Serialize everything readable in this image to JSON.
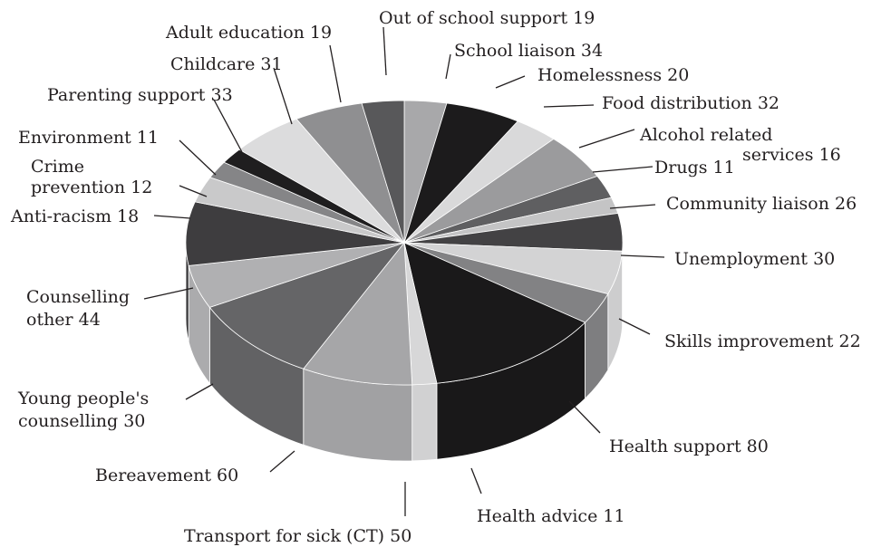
{
  "chart_data": {
    "type": "pie",
    "title": "",
    "categories": [
      "Out of school support",
      "School liaison",
      "Homelessness",
      "Food distribution",
      "Alcohol related services",
      "Drugs",
      "Community liaison",
      "Unemployment",
      "Skills improvement",
      "Health support",
      "Health advice",
      "Transport for sick (CT)",
      "Bereavement",
      "Young people's counselling",
      "Counselling other",
      "Anti-racism",
      "Crime prevention",
      "Environment",
      "Parenting support",
      "Childcare",
      "Adult education"
    ],
    "values": [
      19,
      34,
      20,
      32,
      16,
      11,
      26,
      30,
      22,
      80,
      11,
      50,
      60,
      30,
      44,
      18,
      12,
      11,
      33,
      31,
      19
    ],
    "colors": [
      "#a8a8aa",
      "#1c1b1c",
      "#d9d9da",
      "#9b9b9d",
      "#5f5f61",
      "#c4c4c5",
      "#434244",
      "#d3d3d4",
      "#828284",
      "#1a191a",
      "#d7d7d8",
      "#a6a6a8",
      "#656567",
      "#b0b0b2",
      "#3e3d3f",
      "#c9c9ca",
      "#858587",
      "#1f1e1f",
      "#dcdcdd",
      "#8f8f91",
      "#58585a"
    ],
    "labels": [
      {
        "text": [
          "Out of school support 19"
        ]
      },
      {
        "text": [
          "School liaison 34"
        ]
      },
      {
        "text": [
          "Homelessness 20"
        ]
      },
      {
        "text": [
          "Food distribution 32"
        ]
      },
      {
        "text": [
          "Alcohol related",
          "services 16"
        ]
      },
      {
        "text": [
          "Drugs 11"
        ]
      },
      {
        "text": [
          "Community liaison 26"
        ]
      },
      {
        "text": [
          "Unemployment 30"
        ]
      },
      {
        "text": [
          "Skills improvement 22"
        ]
      },
      {
        "text": [
          "Health support 80"
        ]
      },
      {
        "text": [
          "Health advice 11"
        ]
      },
      {
        "text": [
          "Transport for sick (CT) 50"
        ]
      },
      {
        "text": [
          "Bereavement 60"
        ]
      },
      {
        "text": [
          "Young people's",
          "counselling 30"
        ]
      },
      {
        "text": [
          "Counselling",
          "other 44"
        ]
      },
      {
        "text": [
          "Anti-racism 18"
        ]
      },
      {
        "text": [
          "Crime",
          "prevention 12"
        ]
      },
      {
        "text": [
          "Environment 11"
        ]
      },
      {
        "text": [
          "Parenting support 33"
        ]
      },
      {
        "text": [
          "Childcare 31"
        ]
      },
      {
        "text": [
          "Adult education 19"
        ]
      }
    ],
    "legend": "none",
    "style": "3d-pie"
  }
}
